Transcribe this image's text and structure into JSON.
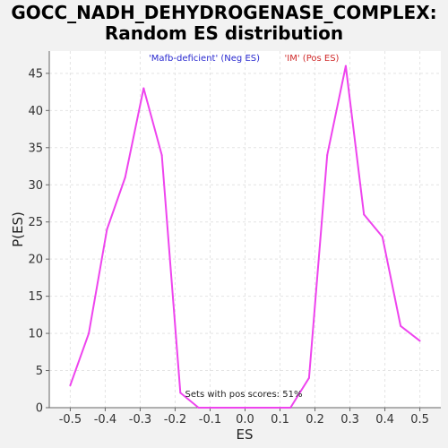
{
  "chart_data": {
    "type": "line",
    "title_line1": "GOCC_NADH_DEHYDROGENASE_COMPLEX:",
    "title_line2": "Random ES distribution",
    "xlabel": "ES",
    "ylabel": "P(ES)",
    "xlim": [
      -0.56,
      0.56
    ],
    "ylim": [
      0,
      48
    ],
    "xticks": [
      "-0.5",
      "-0.4",
      "-0.3",
      "-0.2",
      "-0.1",
      "0.0",
      "0.1",
      "0.2",
      "0.3",
      "0.4",
      "0.5"
    ],
    "xtick_values": [
      -0.5,
      -0.4,
      -0.3,
      -0.2,
      -0.1,
      0.0,
      0.1,
      0.2,
      0.3,
      0.4,
      0.5
    ],
    "yticks": [
      "0",
      "5",
      "10",
      "15",
      "20",
      "25",
      "30",
      "35",
      "40",
      "45"
    ],
    "ytick_values": [
      0,
      5,
      10,
      15,
      20,
      25,
      30,
      35,
      40,
      45
    ],
    "grid": true,
    "legend": [
      {
        "label": "'Mafb-deficient' (Neg ES)",
        "color": "#2a2ad0"
      },
      {
        "label": "'IM' (Pos ES)",
        "color": "#d02a2a"
      }
    ],
    "annotation": "Sets with pos scores: 51%",
    "series": [
      {
        "color": "#ee44ee",
        "x": [
          -0.5,
          -0.447,
          -0.395,
          -0.343,
          -0.29,
          -0.238,
          -0.185,
          -0.133,
          -0.08,
          -0.028,
          0.025,
          0.078,
          0.13,
          0.183,
          0.235,
          0.288,
          0.34,
          0.393,
          0.445,
          0.5
        ],
        "y": [
          3,
          10,
          24,
          31,
          43,
          34,
          2,
          0,
          0,
          0,
          0,
          0,
          0,
          4,
          34,
          46,
          26,
          23,
          11,
          9
        ]
      }
    ]
  }
}
